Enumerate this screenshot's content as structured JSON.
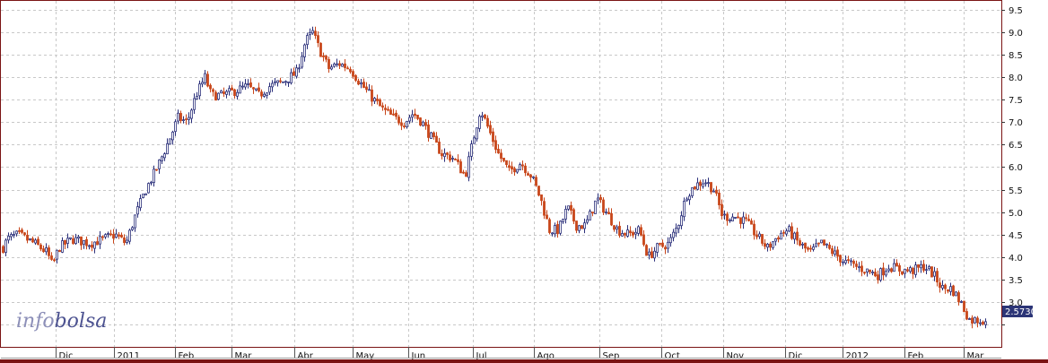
{
  "watermark": {
    "part1": "info",
    "part2": "bolsa"
  },
  "colors": {
    "up": "#2a2f7a",
    "down": "#c8461a",
    "frame": "#7a1414",
    "grid": "#c8c8c8",
    "last_bg": "#2c3577"
  },
  "chart_data": {
    "type": "candlestick",
    "ylim": [
      2.0,
      9.7
    ],
    "ytick_values": [
      2.5,
      3.0,
      3.5,
      4.0,
      4.5,
      5.0,
      5.5,
      6.0,
      6.5,
      7.0,
      7.5,
      8.0,
      8.5,
      9.0,
      9.5
    ],
    "ytick_labels": [
      "",
      "3.0",
      "3.5",
      "4.0",
      "4.5",
      "5.0",
      "5.5",
      "6.0",
      "6.5",
      "7.0",
      "7.5",
      "8.0",
      "8.5",
      "9.0",
      "9.5"
    ],
    "x_labels": [
      "Dic",
      "2011",
      "Feb",
      "Mar",
      "Abr",
      "May",
      "Jun",
      "Jul",
      "Ago",
      "Sep",
      "Oct",
      "Nov",
      "Dic",
      "2012",
      "Feb",
      "Mar"
    ],
    "last_value": "2.5730",
    "grid": true,
    "price_path": [
      [
        0,
        4.1
      ],
      [
        8,
        4.4
      ],
      [
        20,
        4.5
      ],
      [
        38,
        4.3
      ],
      [
        52,
        4.1
      ],
      [
        58,
        3.8
      ],
      [
        65,
        4.2
      ],
      [
        80,
        4.4
      ],
      [
        100,
        4.3
      ],
      [
        115,
        4.4
      ],
      [
        128,
        4.5
      ],
      [
        140,
        4.3
      ],
      [
        150,
        4.9
      ],
      [
        162,
        5.5
      ],
      [
        175,
        6.0
      ],
      [
        188,
        6.6
      ],
      [
        198,
        7.1
      ],
      [
        208,
        7.0
      ],
      [
        218,
        7.6
      ],
      [
        228,
        8.0
      ],
      [
        235,
        7.6
      ],
      [
        248,
        7.6
      ],
      [
        262,
        7.7
      ],
      [
        275,
        7.8
      ],
      [
        288,
        7.6
      ],
      [
        300,
        7.8
      ],
      [
        315,
        7.9
      ],
      [
        330,
        8.1
      ],
      [
        340,
        8.8
      ],
      [
        348,
        9.0
      ],
      [
        356,
        8.6
      ],
      [
        366,
        8.2
      ],
      [
        378,
        8.3
      ],
      [
        390,
        8.2
      ],
      [
        400,
        7.9
      ],
      [
        412,
        7.6
      ],
      [
        425,
        7.3
      ],
      [
        438,
        7.1
      ],
      [
        450,
        7.0
      ],
      [
        460,
        7.2
      ],
      [
        470,
        7.0
      ],
      [
        482,
        6.6
      ],
      [
        492,
        6.3
      ],
      [
        505,
        6.2
      ],
      [
        518,
        5.8
      ],
      [
        528,
        6.7
      ],
      [
        535,
        7.3
      ],
      [
        545,
        6.8
      ],
      [
        555,
        6.3
      ],
      [
        567,
        5.9
      ],
      [
        580,
        6.1
      ],
      [
        592,
        5.8
      ],
      [
        602,
        5.3
      ],
      [
        612,
        4.6
      ],
      [
        622,
        4.6
      ],
      [
        632,
        5.1
      ],
      [
        642,
        4.7
      ],
      [
        652,
        4.7
      ],
      [
        665,
        5.3
      ],
      [
        675,
        5.0
      ],
      [
        688,
        4.6
      ],
      [
        700,
        4.5
      ],
      [
        712,
        4.6
      ],
      [
        722,
        4.0
      ],
      [
        732,
        4.2
      ],
      [
        745,
        4.3
      ],
      [
        755,
        4.7
      ],
      [
        765,
        5.4
      ],
      [
        775,
        5.6
      ],
      [
        785,
        5.7
      ],
      [
        795,
        5.5
      ],
      [
        805,
        4.9
      ],
      [
        818,
        4.9
      ],
      [
        830,
        4.8
      ],
      [
        842,
        4.5
      ],
      [
        855,
        4.2
      ],
      [
        868,
        4.5
      ],
      [
        878,
        4.6
      ],
      [
        890,
        4.3
      ],
      [
        902,
        4.1
      ],
      [
        915,
        4.3
      ],
      [
        928,
        4.1
      ],
      [
        940,
        3.9
      ],
      [
        952,
        3.8
      ],
      [
        965,
        3.7
      ],
      [
        978,
        3.6
      ],
      [
        990,
        3.8
      ],
      [
        1005,
        3.7
      ],
      [
        1018,
        3.7
      ],
      [
        1030,
        3.8
      ],
      [
        1040,
        3.6
      ],
      [
        1050,
        3.3
      ],
      [
        1060,
        3.3
      ],
      [
        1070,
        3.0
      ],
      [
        1080,
        2.6
      ],
      [
        1090,
        2.6
      ],
      [
        1100,
        2.6
      ]
    ]
  }
}
